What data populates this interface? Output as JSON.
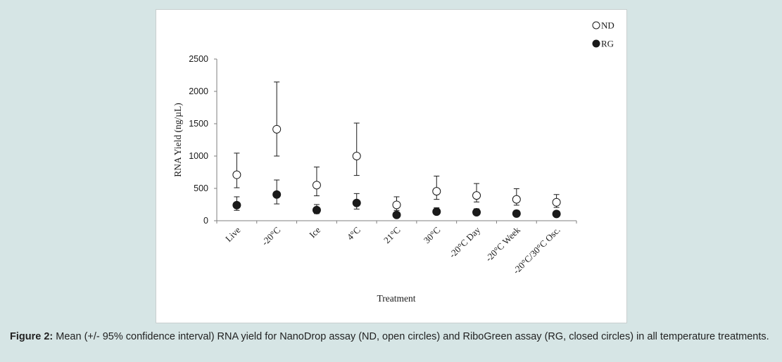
{
  "chart_data": {
    "type": "scatter",
    "categories": [
      "Live",
      "-20°C",
      "Ice",
      "4°C",
      "21°C",
      "30°C",
      "-20°C Day",
      "-20°C Week",
      "-20°C/30°C Osc."
    ],
    "series": [
      {
        "name": "ND",
        "marker": "open-circle",
        "values": [
          710,
          1415,
          550,
          1000,
          245,
          455,
          390,
          330,
          285
        ],
        "ci_lower": [
          510,
          1000,
          385,
          700,
          160,
          330,
          290,
          240,
          205
        ],
        "ci_upper": [
          1045,
          2145,
          830,
          1510,
          370,
          690,
          575,
          495,
          405
        ]
      },
      {
        "name": "RG",
        "marker": "filled-circle",
        "values": [
          240,
          405,
          165,
          275,
          90,
          140,
          130,
          110,
          105
        ],
        "ci_lower": [
          160,
          260,
          110,
          180,
          65,
          100,
          90,
          75,
          70
        ],
        "ci_upper": [
          370,
          630,
          250,
          420,
          125,
          200,
          185,
          160,
          150
        ]
      }
    ],
    "xlabel": "Treatment",
    "ylabel": "RNA Yield (ng/µL)",
    "ylim": [
      0,
      2500
    ],
    "yticks": [
      0,
      500,
      1000,
      1500,
      2000,
      2500
    ],
    "legend_position": "top-right",
    "grid": false,
    "colors": {
      "marker": "#1a1a1a",
      "axis": "#7f7f7f",
      "text": "#1a1a1a"
    }
  },
  "caption": {
    "label": "Figure 2:",
    "text": " Mean (+/- 95% confidence interval) RNA yield for NanoDrop assay (ND, open circles) and RiboGreen assay (RG, closed circles) in all temperature treatments."
  }
}
